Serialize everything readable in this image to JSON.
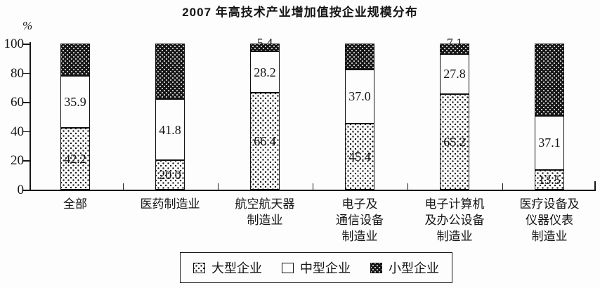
{
  "chart_data": {
    "type": "bar",
    "variant": "stacked-100-percent",
    "title": "2007 年高技术产业增加值按企业规模分布",
    "ylabel": "%",
    "xlabel": "",
    "ylim": [
      0,
      100
    ],
    "yticks": [
      "0",
      "20",
      "40",
      "60",
      "80",
      "100"
    ],
    "grid": false,
    "legend_position": "bottom",
    "categories": [
      {
        "lines": [
          "全部"
        ]
      },
      {
        "lines": [
          "医药制造业"
        ]
      },
      {
        "lines": [
          "航空航天器",
          "制造业"
        ]
      },
      {
        "lines": [
          "电子及",
          "通信设备",
          "制造业"
        ]
      },
      {
        "lines": [
          "电子计算机",
          "及办公设备",
          "制造业"
        ]
      },
      {
        "lines": [
          "医疗设备及",
          "仪器仪表",
          "制造业"
        ]
      }
    ],
    "series": [
      {
        "name": "大型企业",
        "pattern": "light-dots",
        "values": [
          42.2,
          20.0,
          66.4,
          45.4,
          65.2,
          13.5
        ],
        "labels": [
          "42.2",
          "20.0",
          "66.4",
          "45.4",
          "65.2",
          "13.5"
        ],
        "label_placement": "inside"
      },
      {
        "name": "中型企业",
        "pattern": "white",
        "values": [
          35.9,
          41.8,
          28.2,
          37.0,
          27.8,
          37.1
        ],
        "labels": [
          "35.9",
          "41.8",
          "28.2",
          "37.0",
          "27.8",
          "37.1"
        ],
        "label_placement": "inside"
      },
      {
        "name": "小型企业",
        "pattern": "dark-dots",
        "values": [
          21.9,
          38.2,
          5.4,
          17.6,
          7.1,
          49.4
        ],
        "labels": [
          "",
          "",
          "5.4",
          "",
          "7.1",
          ""
        ],
        "label_placement": "top"
      }
    ],
    "colors": {
      "ink": "#161616",
      "paper": "#fdfdfd"
    }
  }
}
